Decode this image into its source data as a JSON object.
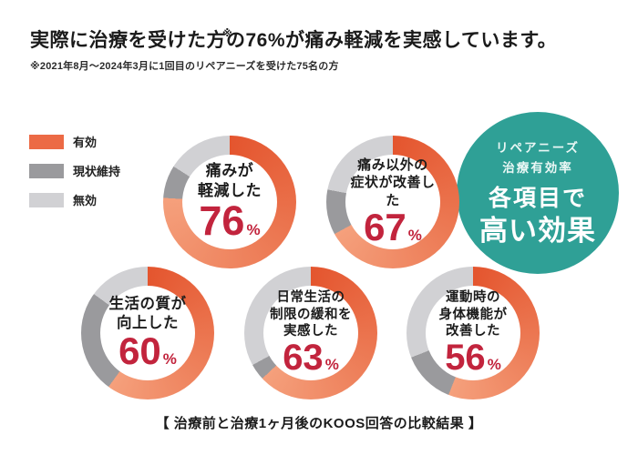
{
  "header": {
    "title_prefix": "実際に治療を受けた方",
    "title_note_mark": "※",
    "title_suffix": "の76%が痛み軽減を実感しています。",
    "subtitle": "※2021年8月〜2024年3月に1回目のリペアニーズを受けた75名の方"
  },
  "legend": {
    "items": [
      {
        "label": "有効",
        "color": "#ec6a45"
      },
      {
        "label": "現状維持",
        "color": "#9a9a9d"
      },
      {
        "label": "無効",
        "color": "#d1d1d4"
      }
    ]
  },
  "badge": {
    "line1": "リペアニーズ",
    "line2": "治療有効率",
    "line3": "各項目で",
    "line4": "高い効果",
    "color_main": "#2fa096",
    "color_mid": "#55b0a7",
    "color_edge": "#a7d8d2"
  },
  "footer": {
    "caption": "【 治療前と治療1ヶ月後のKOOS回答の比較結果 】"
  },
  "chart_data": {
    "type": "pie",
    "subtype": "donut-multiple",
    "unit": "%",
    "legend_position": "top-left",
    "segment_order": [
      "有効",
      "現状維持",
      "無効"
    ],
    "colors": {
      "effective_start": "#e4552e",
      "effective_end": "#f5a07c",
      "maintain": "#9a9a9d",
      "ineffective": "#d1d1d4",
      "value_text": "#c2243d"
    },
    "charts": [
      {
        "label": "痛みが\n軽減した",
        "value": 76,
        "segments": [
          76,
          8,
          16
        ]
      },
      {
        "label": "痛み以外の\n症状が改善した",
        "value": 67,
        "segments": [
          67,
          11,
          22
        ]
      },
      {
        "label": "生活の質が\n向上した",
        "value": 60,
        "segments": [
          60,
          25,
          15
        ]
      },
      {
        "label": "日常生活の\n制限の緩和を\n実感した",
        "value": 63,
        "segments": [
          63,
          4,
          33
        ]
      },
      {
        "label": "運動時の\n身体機能が\n改善した",
        "value": 56,
        "segments": [
          56,
          13,
          31
        ]
      }
    ]
  }
}
